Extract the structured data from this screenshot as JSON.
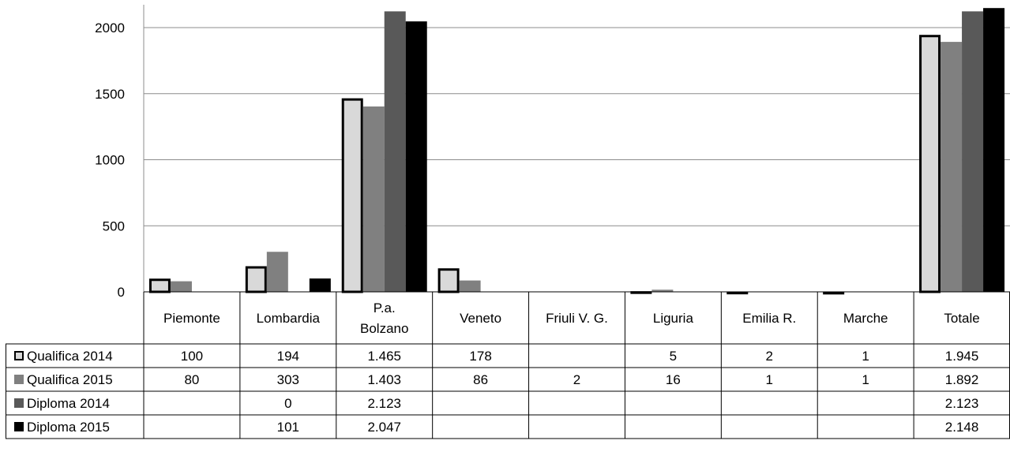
{
  "chart_data": {
    "type": "bar",
    "title": "",
    "xlabel": "",
    "ylabel": "",
    "ylim": [
      0,
      2150
    ],
    "yticks": [
      0,
      500,
      1000,
      1500,
      2000
    ],
    "gridlines": true,
    "legend": "in data table, left column",
    "categories": [
      "Piemonte",
      "Lombardia",
      "P.a. Bolzano",
      "Veneto",
      "Friuli V. G.",
      "Liguria",
      "Emilia R.",
      "Marche",
      "Totale"
    ],
    "series": [
      {
        "name": "Qualifica 2014",
        "color": "#d9d9d9",
        "stroke": "#000000",
        "values": [
          100,
          194,
          1465,
          178,
          null,
          5,
          2,
          1,
          1945
        ],
        "labels": [
          "100",
          "194",
          "1.465",
          "178",
          "",
          "5",
          "2",
          "1",
          "1.945"
        ]
      },
      {
        "name": "Qualifica 2015",
        "color": "#808080",
        "stroke": "none",
        "values": [
          80,
          303,
          1403,
          86,
          2,
          16,
          1,
          1,
          1892
        ],
        "labels": [
          "80",
          "303",
          "1.403",
          "86",
          "2",
          "16",
          "1",
          "1",
          "1.892"
        ]
      },
      {
        "name": "Diploma 2014",
        "color": "#595959",
        "stroke": "none",
        "values": [
          null,
          0,
          2123,
          null,
          null,
          null,
          null,
          null,
          2123
        ],
        "labels": [
          "",
          "0",
          "2.123",
          "",
          "",
          "",
          "",
          "",
          "2.123"
        ]
      },
      {
        "name": "Diploma 2015",
        "color": "#000000",
        "stroke": "none",
        "values": [
          null,
          101,
          2047,
          null,
          null,
          null,
          null,
          null,
          2148
        ],
        "labels": [
          "",
          "101",
          "2.047",
          "",
          "",
          "",
          "",
          "",
          "2.148"
        ]
      }
    ]
  }
}
